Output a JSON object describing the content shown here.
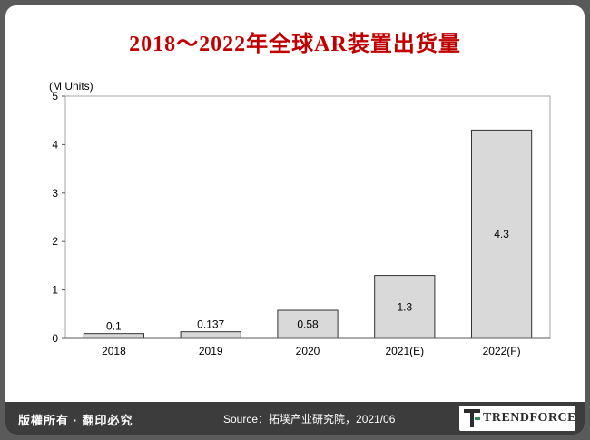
{
  "header": {
    "title": "2018～2022年全球AR装置出货量"
  },
  "footer": {
    "copyright": "版權所有 · 翻印必究",
    "source": "Source：拓墣产业研究院，2021/06",
    "brand": "TRENDFORCE"
  },
  "chart_data": {
    "type": "bar",
    "title": "2018～2022年全球AR装置出货量",
    "ylabel": "(M Units)",
    "xlabel": "",
    "categories": [
      "2018",
      "2019",
      "2020",
      "2021(E)",
      "2022(F)"
    ],
    "values": [
      0.1,
      0.137,
      0.58,
      1.3,
      4.3
    ],
    "data_labels": [
      "0.1",
      "0.137",
      "0.58",
      "1.3",
      "4.3"
    ],
    "ylim": [
      0,
      5
    ],
    "yticks": [
      0,
      1,
      2,
      3,
      4,
      5
    ],
    "grid": false,
    "bar_color": "#d9d9d9",
    "bar_edge_color": "#333333"
  }
}
